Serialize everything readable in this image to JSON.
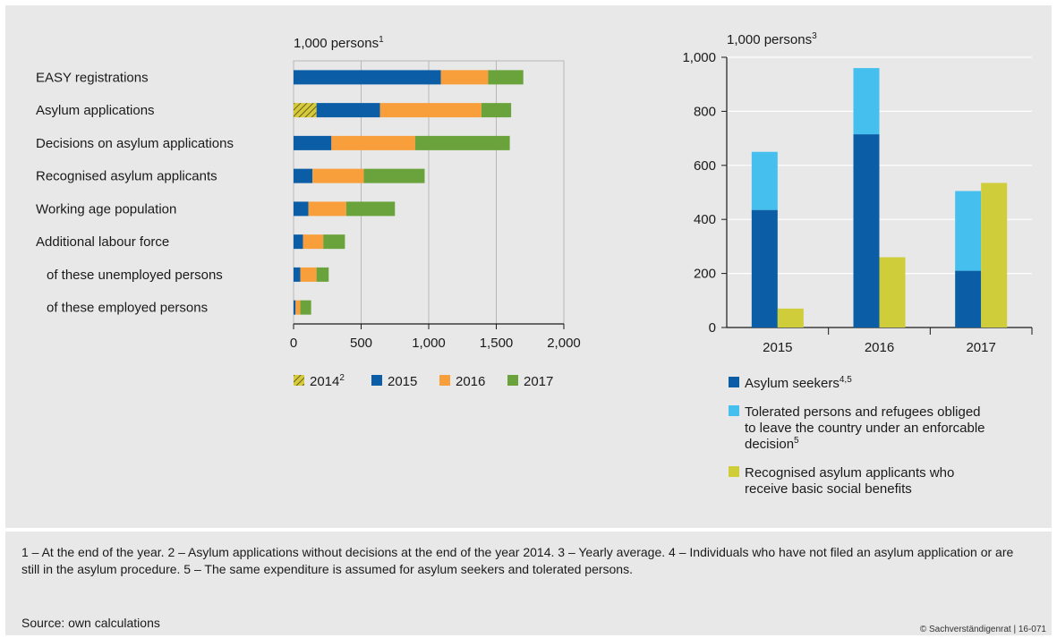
{
  "colors": {
    "y2014": "#d6c93a",
    "y2015": "#0b5ea6",
    "y2016": "#f89f3b",
    "y2017": "#6aa33b",
    "asylum_seekers": "#0b5ea6",
    "tolerated": "#45c0ee",
    "recognised": "#cfcd3a",
    "panel_bg": "#e8e8e8",
    "grid": "#b7b7b7"
  },
  "chart_data": [
    {
      "type": "bar",
      "orientation": "horizontal",
      "stacked": true,
      "unit_label": "1,000 persons",
      "unit_sup": "1",
      "categories": [
        "EASY registrations",
        "Asylum applications",
        "Decisions on asylum applications",
        "Recognised asylum applicants",
        "Working age population",
        "Additional labour force",
        "of these unemployed persons",
        "of these employed persons"
      ],
      "indented": [
        false,
        false,
        false,
        false,
        false,
        false,
        true,
        true
      ],
      "series": [
        {
          "name": "2014",
          "sup": "2",
          "hatched": true,
          "color_key": "y2014",
          "values": [
            0,
            170,
            0,
            0,
            0,
            0,
            0,
            0
          ]
        },
        {
          "name": "2015",
          "sup": "",
          "color_key": "y2015",
          "values": [
            1090,
            470,
            280,
            140,
            110,
            70,
            50,
            15
          ]
        },
        {
          "name": "2016",
          "sup": "",
          "color_key": "y2016",
          "values": [
            350,
            750,
            620,
            380,
            280,
            150,
            120,
            35
          ]
        },
        {
          "name": "2017",
          "sup": "",
          "color_key": "y2017",
          "values": [
            260,
            220,
            700,
            450,
            360,
            160,
            90,
            80
          ]
        }
      ],
      "xlim": [
        0,
        2000
      ],
      "xticks": [
        "0",
        "500",
        "1,000",
        "1,500",
        "2,000"
      ],
      "grid": true,
      "legend_placement": "bottom"
    },
    {
      "type": "bar",
      "orientation": "vertical",
      "unit_label": "1,000 persons",
      "unit_sup": "3",
      "categories": [
        "2015",
        "2016",
        "2017"
      ],
      "stacked_series": [
        {
          "name": "Asylum seekers",
          "sup": "4,5",
          "color_key": "asylum_seekers",
          "values": [
            435,
            715,
            210
          ]
        },
        {
          "name": "Tolerated persons and refugees obliged to leave the country under an enforcable decision",
          "name_lines": [
            "Tolerated persons and refugees obliged",
            "to leave the country under an enforcable",
            "decision"
          ],
          "sup": "5",
          "color_key": "tolerated",
          "values": [
            215,
            245,
            295
          ]
        }
      ],
      "side_series": [
        {
          "name": "Recognised asylum applicants who receive basic social benefits",
          "name_lines": [
            "Recognised asylum applicants who",
            "receive basic social benefits"
          ],
          "sup": "",
          "color_key": "recognised",
          "values": [
            70,
            260,
            535
          ]
        }
      ],
      "ylim": [
        0,
        1000
      ],
      "yticks": [
        "0",
        "200",
        "400",
        "600",
        "800",
        "1,000"
      ],
      "grid": true,
      "legend_placement": "bottom"
    }
  ],
  "footnote": "1 – At the end of the year.  2 – Asylum applications without decisions at the end of the year 2014.  3 – Yearly average.  4 – Individuals who have not filed an asylum application or are still in the asylum procedure.  5 – The same expenditure is assumed for asylum seekers and tolerated persons.",
  "source": "Source: own calculations",
  "copyright": "© Sachverständigenrat | 16-071"
}
